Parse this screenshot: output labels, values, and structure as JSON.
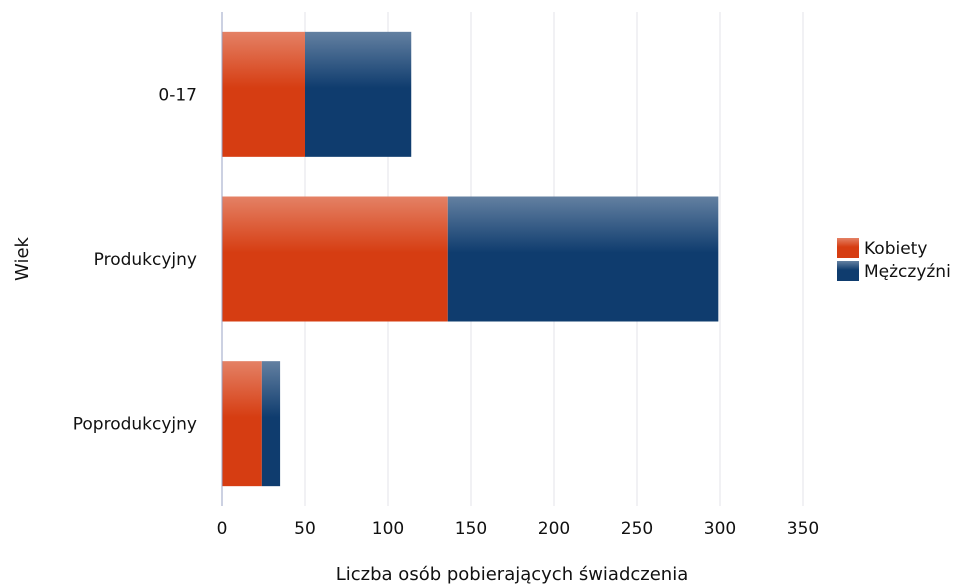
{
  "chart_data": {
    "type": "bar",
    "orientation": "horizontal",
    "stacked": true,
    "categories": [
      "0-17",
      "Produkcyjny",
      "Poprodukcyjny"
    ],
    "series": [
      {
        "name": "Kobiety",
        "values": [
          50,
          136,
          24
        ],
        "color": "#d63d12"
      },
      {
        "name": "Mężczyźni",
        "values": [
          64,
          163,
          11
        ],
        "color": "#0f3c6e"
      }
    ],
    "xlabel": "Liczba osób pobierających świadczenia",
    "ylabel": "Wiek",
    "xlim": [
      0,
      350
    ],
    "xticks": [
      0,
      50,
      100,
      150,
      200,
      250,
      300,
      350
    ],
    "grid": "vertical",
    "legend_position": "right"
  }
}
